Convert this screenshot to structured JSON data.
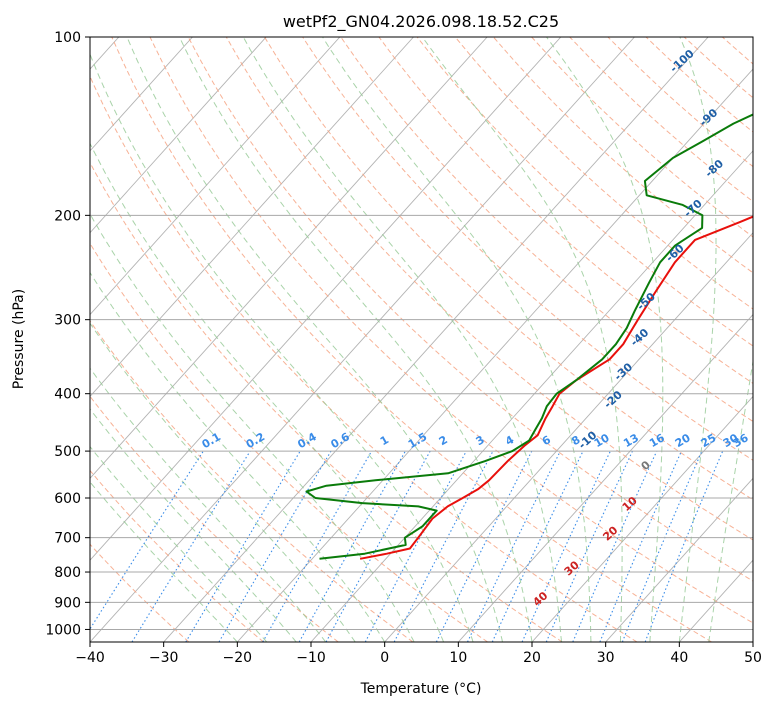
{
  "chart_data": {
    "type": "line",
    "title": "wetPf2_GN04.2026.098.18.52.C25",
    "xlabel": "Temperature (°C)",
    "ylabel": "Pressure (hPa)",
    "xlim": [
      -40,
      50
    ],
    "ylim": [
      1050,
      100
    ],
    "x_ticks": [
      "−40",
      "−30",
      "−20",
      "−10",
      "0",
      "10",
      "20",
      "30",
      "40",
      "50"
    ],
    "y_ticks": [
      {
        "p": 100,
        "label": "100"
      },
      {
        "p": 200,
        "label": "200"
      },
      {
        "p": 300,
        "label": "300"
      },
      {
        "p": 400,
        "label": "400"
      },
      {
        "p": 500,
        "label": "500"
      },
      {
        "p": 600,
        "label": "600"
      },
      {
        "p": 700,
        "label": "700"
      },
      {
        "p": 800,
        "label": "800"
      },
      {
        "p": 900,
        "label": "900"
      },
      {
        "p": 1000,
        "label": "1000"
      }
    ],
    "series": [
      {
        "name": "Temperature",
        "color": "#e8100c",
        "points": [
          [
            760,
            -13.5
          ],
          [
            745,
            -10.5
          ],
          [
            730,
            -8.0
          ],
          [
            700,
            -8.2
          ],
          [
            650,
            -8.6
          ],
          [
            620,
            -8.0
          ],
          [
            600,
            -7.0
          ],
          [
            580,
            -6.0
          ],
          [
            560,
            -5.6
          ],
          [
            520,
            -5.4
          ],
          [
            490,
            -5.0
          ],
          [
            470,
            -4.5
          ],
          [
            440,
            -5.5
          ],
          [
            420,
            -6.0
          ],
          [
            400,
            -6.6
          ],
          [
            380,
            -6.0
          ],
          [
            350,
            -4.0
          ],
          [
            330,
            -4.0
          ],
          [
            300,
            -5.0
          ],
          [
            270,
            -6.0
          ],
          [
            240,
            -7.0
          ],
          [
            220,
            -7.0
          ],
          [
            205,
            -3.0
          ],
          [
            190,
            1.0
          ],
          [
            175,
            6.0
          ],
          [
            160,
            10.5
          ],
          [
            145,
            12.0
          ],
          [
            130,
            14.0
          ],
          [
            120,
            17.0
          ],
          [
            110,
            20.0
          ],
          [
            103,
            21.5
          ],
          [
            100,
            22.0
          ]
        ]
      },
      {
        "name": "Dewpoint",
        "color": "#0a7b0a",
        "points": [
          [
            760,
            -19.0
          ],
          [
            745,
            -13.5
          ],
          [
            720,
            -9.0
          ],
          [
            700,
            -10.0
          ],
          [
            670,
            -9.0
          ],
          [
            630,
            -9.0
          ],
          [
            620,
            -12.0
          ],
          [
            612,
            -20.0
          ],
          [
            600,
            -27.0
          ],
          [
            585,
            -29.0
          ],
          [
            572,
            -27.0
          ],
          [
            560,
            -21.0
          ],
          [
            545,
            -12.0
          ],
          [
            520,
            -8.5
          ],
          [
            500,
            -6.0
          ],
          [
            480,
            -5.0
          ],
          [
            460,
            -5.5
          ],
          [
            440,
            -6.0
          ],
          [
            420,
            -6.8
          ],
          [
            400,
            -7.0
          ],
          [
            380,
            -6.0
          ],
          [
            350,
            -5.0
          ],
          [
            330,
            -5.0
          ],
          [
            310,
            -5.5
          ],
          [
            290,
            -6.5
          ],
          [
            260,
            -8.0
          ],
          [
            240,
            -9.0
          ],
          [
            225,
            -9.0
          ],
          [
            210,
            -7.5
          ],
          [
            200,
            -9.0
          ],
          [
            192,
            -13.0
          ],
          [
            185,
            -19.0
          ],
          [
            175,
            -21.0
          ],
          [
            160,
            -20.0
          ],
          [
            150,
            -18.0
          ],
          [
            140,
            -16.0
          ],
          [
            125,
            -11.0
          ],
          [
            110,
            -5.0
          ],
          [
            100,
            -1.0
          ]
        ]
      }
    ],
    "dry_adiabat_labels": [
      {
        "text": "-100",
        "p": 110,
        "t": -30.5
      },
      {
        "text": "-90",
        "p": 137,
        "t": -20.0
      },
      {
        "text": "-80",
        "p": 167,
        "t": -13.0
      },
      {
        "text": "-70",
        "p": 195,
        "t": -11.0
      },
      {
        "text": "-60",
        "p": 232,
        "t": -8.0
      },
      {
        "text": "-50",
        "p": 280,
        "t": -6.0
      },
      {
        "text": "-40",
        "p": 322,
        "t": -2.5
      },
      {
        "text": "-30",
        "p": 368,
        "t": -0.5
      },
      {
        "text": "-20",
        "p": 410,
        "t": 1.5
      },
      {
        "text": "-10",
        "p": 480,
        "t": 3.0
      }
    ],
    "moist_adiabat_labels": [
      {
        "text": "0",
        "p": 530,
        "t": 14.0
      },
      {
        "text": "10",
        "p": 615,
        "t": 16.5
      },
      {
        "text": "20",
        "p": 690,
        "t": 17.5
      },
      {
        "text": "30",
        "p": 790,
        "t": 16.5
      },
      {
        "text": "40",
        "p": 890,
        "t": 16.0
      }
    ],
    "mixing_ratio_labels": [
      "0.1",
      "0.2",
      "0.4",
      "0.6",
      "1",
      "1.5",
      "2",
      "3",
      "4",
      "6",
      "8",
      "10",
      "13",
      "16",
      "20",
      "25",
      "30",
      "36"
    ],
    "mixing_ratio_label_x": [
      -23.5,
      -17.5,
      -10.5,
      -6.0,
      0.0,
      4.5,
      8.0,
      13.0,
      17.0,
      22.0,
      26.0,
      29.5,
      33.5,
      37.0,
      40.5,
      44.0,
      47.0,
      50.0
    ]
  },
  "colors": {
    "temperature": "#e8100c",
    "dewpoint": "#0a7b0a",
    "isotherm": "#9a9a9a",
    "dry_adiabat": "#f6a484",
    "moist_adiabat": "#94c894",
    "mixing_ratio": "#3a8ce8",
    "dry_label": "#1f5fa6",
    "moist_label": "#cc2222"
  }
}
